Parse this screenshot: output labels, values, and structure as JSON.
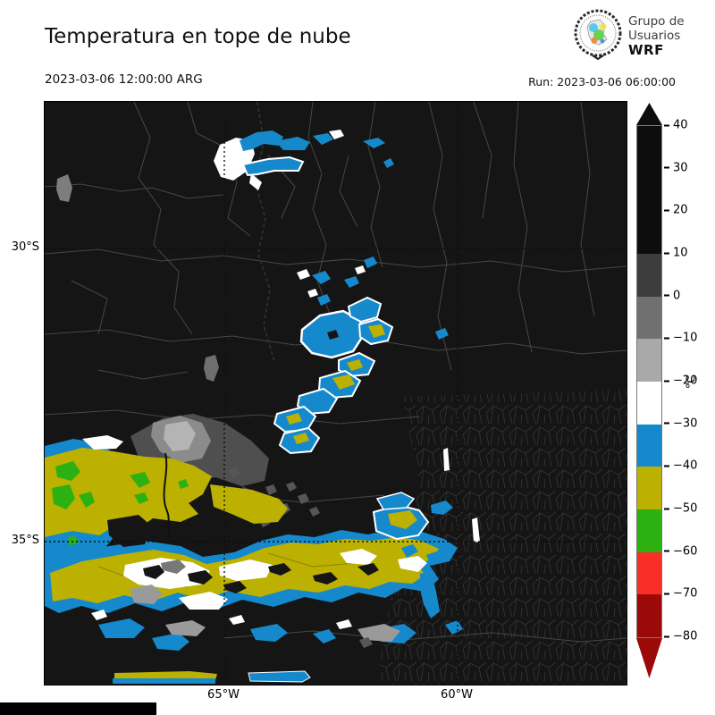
{
  "header": {
    "title": "Temperatura en tope de nube",
    "valid_time": "2023-03-06 12:00:00 ARG",
    "run_label": "Run: 2023-03-06 06:00:00",
    "logo": {
      "line1": "Grupo de",
      "line2": "Usuarios",
      "line3": "WRF"
    }
  },
  "map": {
    "background": "#151515",
    "boundary_color": "#474747",
    "y_ticks": [
      {
        "label": "30°S"
      },
      {
        "label": "35°S"
      }
    ],
    "x_ticks": [
      {
        "label": "65°W"
      },
      {
        "label": "60°W"
      }
    ]
  },
  "colorbar": {
    "unit": "°C",
    "ticks": [
      "40",
      "30",
      "20",
      "10",
      "0",
      "−10",
      "−20",
      "−30",
      "−40",
      "−50",
      "−60",
      "−70",
      "−80"
    ],
    "segments": [
      {
        "range": "40 to 10",
        "color": "#0d0d0d",
        "span": 3
      },
      {
        "range": "10 to 0",
        "color": "#3d3d3d",
        "span": 1
      },
      {
        "range": "0 to −10",
        "color": "#707070",
        "span": 1
      },
      {
        "range": "−10 to −20",
        "color": "#a9a9a9",
        "span": 1
      },
      {
        "range": "−20 to −30",
        "color": "#ffffff",
        "span": 1
      },
      {
        "range": "−30 to −40",
        "color": "#1589cb",
        "span": 1
      },
      {
        "range": "−40 to −50",
        "color": "#bcb100",
        "span": 1
      },
      {
        "range": "−50 to −60",
        "color": "#2db012",
        "span": 1
      },
      {
        "range": "−60 to −70",
        "color": "#fa2d27",
        "span": 1
      },
      {
        "range": "−70 to −80",
        "color": "#9b0909",
        "span": 1
      }
    ],
    "over_arrow_color": "#0d0d0d",
    "under_arrow_color": "#9b0909"
  }
}
